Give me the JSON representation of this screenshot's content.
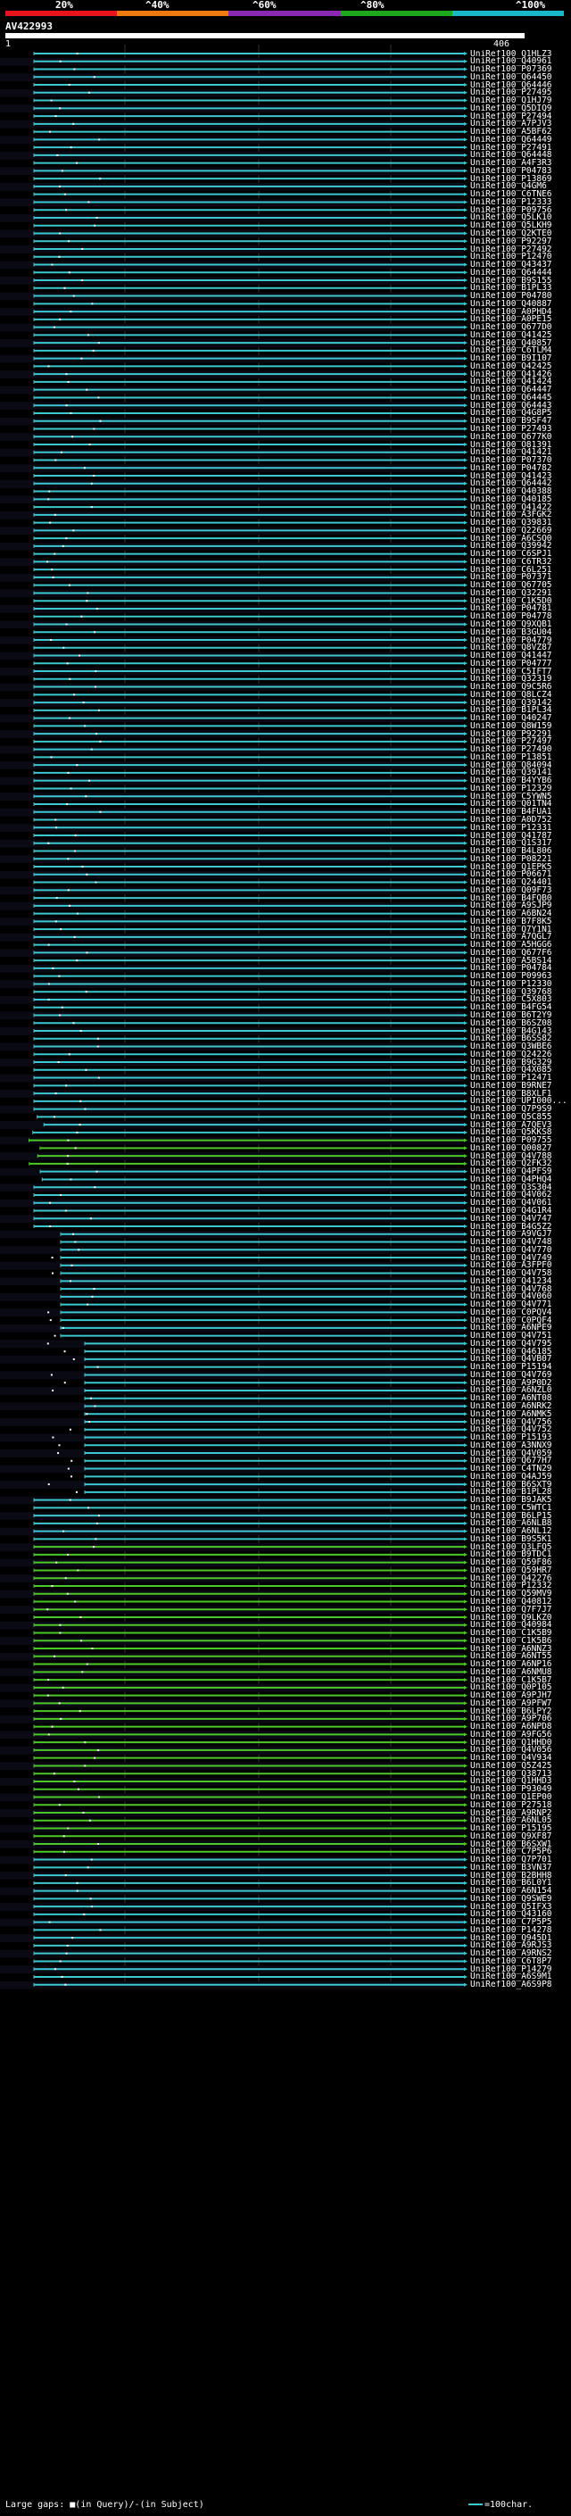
{
  "scale": {
    "labels": [
      "20%",
      "^40%",
      "^60%",
      "^80%",
      "^100%"
    ],
    "colors": [
      "#e8141c",
      "#f07a10",
      "#8a2ab0",
      "#1ea81e",
      "#18b8c8"
    ]
  },
  "query": {
    "name": "AV422993",
    "ruler_start": "1",
    "ruler_end": "406"
  },
  "colors": {
    "cyan": "#3cc8d0",
    "green": "#4cc828",
    "dark_green": "#2a7a14",
    "background": "#000000",
    "text": "#ffffff"
  },
  "hits": [
    "UniRef100_Q1HLZ3",
    "UniRef100_Q40961",
    "UniRef100_P07369",
    "UniRef100_Q64450",
    "UniRef100_Q64446",
    "UniRef100_P27495",
    "UniRef100_Q1HJ79",
    "UniRef100_Q5DIQ9",
    "UniRef100_P27494",
    "UniRef100_A7PJV3",
    "UniRef100_A5BF62",
    "UniRef100_Q64449",
    "UniRef100_P27491",
    "UniRef100_Q64448",
    "UniRef100_A4F3R3",
    "UniRef100_P04783",
    "UniRef100_P13869",
    "UniRef100_Q4GM6",
    "UniRef100_C6TNE6",
    "UniRef100_P12333",
    "UniRef100_P09756",
    "UniRef100_Q5LK10",
    "UniRef100_Q5LKH9",
    "UniRef100_Q2KTE0",
    "UniRef100_P92297",
    "UniRef100_P27492",
    "UniRef100_P12470",
    "UniRef100_Q43437",
    "UniRef100_Q64444",
    "UniRef100_B9S155",
    "UniRef100_B1PL33",
    "UniRef100_P04780",
    "UniRef100_Q40887",
    "UniRef100_A0PHD4",
    "UniRef100_A0PE15",
    "UniRef100_Q677D0",
    "UniRef100_Q41425",
    "UniRef100_Q40857",
    "UniRef100_C6TLM4",
    "UniRef100_B9I107",
    "UniRef100_Q42425",
    "UniRef100_Q41426",
    "UniRef100_Q41424",
    "UniRef100_Q64447",
    "UniRef100_Q64445",
    "UniRef100_Q64443",
    "UniRef100_Q4G8P5",
    "UniRef100_B9SF47",
    "UniRef100_P27493",
    "UniRef100_Q677K0",
    "UniRef100_O81391",
    "UniRef100_Q41421",
    "UniRef100_P07370",
    "UniRef100_P04782",
    "UniRef100_Q41423",
    "UniRef100_Q64442",
    "UniRef100_Q40388",
    "UniRef100_Q40185",
    "UniRef100_Q41422",
    "UniRef100_A3FGK2",
    "UniRef100_Q39831",
    "UniRef100_Q22669",
    "UniRef100_A6CSQ0",
    "UniRef100_Q39942",
    "UniRef100_C6SPJ1",
    "UniRef100_C6TR32",
    "UniRef100_C6L251",
    "UniRef100_P07371",
    "UniRef100_Q67705",
    "UniRef100_Q32291",
    "UniRef100_C1K5D0",
    "UniRef100_P04781",
    "UniRef100_P04778",
    "UniRef100_Q9XQB1",
    "UniRef100_B3GU04",
    "UniRef100_P04779",
    "UniRef100_Q8VZ87",
    "UniRef100_Q41447",
    "UniRef100_P04777",
    "UniRef100_C5IFT7",
    "UniRef100_Q32319",
    "UniRef100_Q9C5R6",
    "UniRef100_Q8LCZ4",
    "UniRef100_Q39142",
    "UniRef100_B1PL34",
    "UniRef100_Q40247",
    "UniRef100_Q8W159",
    "UniRef100_P92291",
    "UniRef100_P27497",
    "UniRef100_P27490",
    "UniRef100_P13851",
    "UniRef100_Q84094",
    "UniRef100_Q39141",
    "UniRef100_B4YYB6",
    "UniRef100_P12329",
    "UniRef100_C5YWN5",
    "UniRef100_Q01TN4",
    "UniRef100_B4FUA1",
    "UniRef100_A0D752",
    "UniRef100_P12331",
    "UniRef100_Q41787",
    "UniRef100_Q1S317",
    "UniRef100_B4L806",
    "UniRef100_P08221",
    "UniRef100_Q1EPK5",
    "UniRef100_P06671",
    "UniRef100_Q24401",
    "UniRef100_Q09F73",
    "UniRef100_B4FQB0",
    "UniRef100_A9SJP9",
    "UniRef100_A6BN24",
    "UniRef100_B7F8K5",
    "UniRef100_Q7Y1N1",
    "UniRef100_A7QGL7",
    "UniRef100_A5HGG6",
    "UniRef100_Q677F6",
    "UniRef100_A5BS14",
    "UniRef100_P04784",
    "UniRef100_P09963",
    "UniRef100_P12330",
    "UniRef100_Q39768",
    "UniRef100_C5X803",
    "UniRef100_B4FG54",
    "UniRef100_B6T2Y9",
    "UniRef100_B6SZ08",
    "UniRef100_B4G143",
    "UniRef100_B6SS82",
    "UniRef100_Q3WBE6",
    "UniRef100_Q24226",
    "UniRef100_B9G329",
    "UniRef100_Q4X085",
    "UniRef100_P12471",
    "UniRef100_B9RNE7",
    "UniRef100_B8XLF1",
    "UniRef100_UPI000...",
    "UniRef100_Q7P9S9",
    "UniRef100_Q5C855",
    "UniRef100_A7QEV3",
    "UniRef100_Q5KKS8",
    "UniRef100_P09755",
    "UniRef100_Q00827",
    "UniRef100_Q4V788",
    "UniRef100_Q2FK32",
    "UniRef100_Q4PFS9",
    "UniRef100_Q4PHQ4",
    "UniRef100_Q3S304",
    "UniRef100_Q4V062",
    "UniRef100_Q4V061",
    "UniRef100_Q4G1R4",
    "UniRef100_Q4V747",
    "UniRef100_B4G5Z2",
    "UniRef100_A9VGJ7",
    "UniRef100_Q4V748",
    "UniRef100_Q4V770",
    "UniRef100_Q4V749",
    "UniRef100_A3FPF0",
    "UniRef100_Q4V758",
    "UniRef100_Q41234",
    "UniRef100_Q4V768",
    "UniRef100_Q4V060",
    "UniRef100_Q4V771",
    "UniRef100_C0PQV4",
    "UniRef100_C0PQF4",
    "UniRef100_A6NPE9",
    "UniRef100_Q4V751",
    "UniRef100_Q4V795",
    "UniRef100_Q46185",
    "UniRef100_Q4VB07",
    "UniRef100_P15194",
    "UniRef100_Q4V769",
    "UniRef100_A9P0D2",
    "UniRef100_A6NZL0",
    "UniRef100_A6NT08",
    "UniRef100_A6NRK2",
    "UniRef100_A6NMK5",
    "UniRef100_Q4V756",
    "UniRef100_Q4V752",
    "UniRef100_P15193",
    "UniRef100_A3NNX9",
    "UniRef100_Q4V059",
    "UniRef100_Q677H7",
    "UniRef100_C4TN29",
    "UniRef100_Q4AJ59",
    "UniRef100_B6SXT9",
    "UniRef100_B1PL28",
    "UniRef100_B9JAK5",
    "UniRef100_C5WTC1",
    "UniRef100_B6LP15",
    "UniRef100_A6NLB8",
    "UniRef100_A6NL12",
    "UniRef100_B9S5K1",
    "UniRef100_Q3LFQ5",
    "UniRef100_B9TDC1",
    "UniRef100_Q59F86",
    "UniRef100_Q59HR7",
    "UniRef100_Q42276",
    "UniRef100_P12332",
    "UniRef100_Q59MV9",
    "UniRef100_Q40812",
    "UniRef100_Q7F7J7",
    "UniRef100_Q9LKZ0",
    "UniRef100_Q40984",
    "UniRef100_C1K5B9",
    "UniRef100_C1K5B6",
    "UniRef100_A6NNZ3",
    "UniRef100_A6NT55",
    "UniRef100_A6NP16",
    "UniRef100_A6NMU8",
    "UniRef100_C1K5B7",
    "UniRef100_Q0P105",
    "UniRef100_A9PJH7",
    "UniRef100_A9PFW7",
    "UniRef100_B6LPY2",
    "UniRef100_A9P706",
    "UniRef100_A6NPD8",
    "UniRef100_A9FG56",
    "UniRef100_Q1HHD0",
    "UniRef100_Q4V056",
    "UniRef100_Q4V934",
    "UniRef100_Q5Z425",
    "UniRef100_Q38713",
    "UniRef100_Q1HHD3",
    "UniRef100_P93049",
    "UniRef100_Q1EP00",
    "UniRef100_P27518",
    "UniRef100_A9RNP2",
    "UniRef100_A6NL05",
    "UniRef100_P15195",
    "UniRef100_Q9XF87",
    "UniRef100_B6SXW1",
    "UniRef100_C7P5P6",
    "UniRef100_Q7P701",
    "UniRef100_B3VN37",
    "UniRef100_B2BHH8",
    "UniRef100_B6L0Y1",
    "UniRef100_A6N154",
    "UniRef100_Q9SWE9",
    "UniRef100_Q5IFX3",
    "UniRef100_Q43160",
    "UniRef100_C7P5P5",
    "UniRef100_P14278",
    "UniRef100_Q945D1",
    "UniRef100_A9RJS3",
    "UniRef100_A9RNS2",
    "UniRef100_C6T8P7",
    "UniRef100_P14279",
    "UniRef100_A6S9M1",
    "UniRef100_A6S9P8"
  ],
  "legend": {
    "large_gaps": "Large gaps:",
    "in_query": "(in Query)",
    "in_subject": "(in Subject)",
    "scale_note": "=100char."
  }
}
